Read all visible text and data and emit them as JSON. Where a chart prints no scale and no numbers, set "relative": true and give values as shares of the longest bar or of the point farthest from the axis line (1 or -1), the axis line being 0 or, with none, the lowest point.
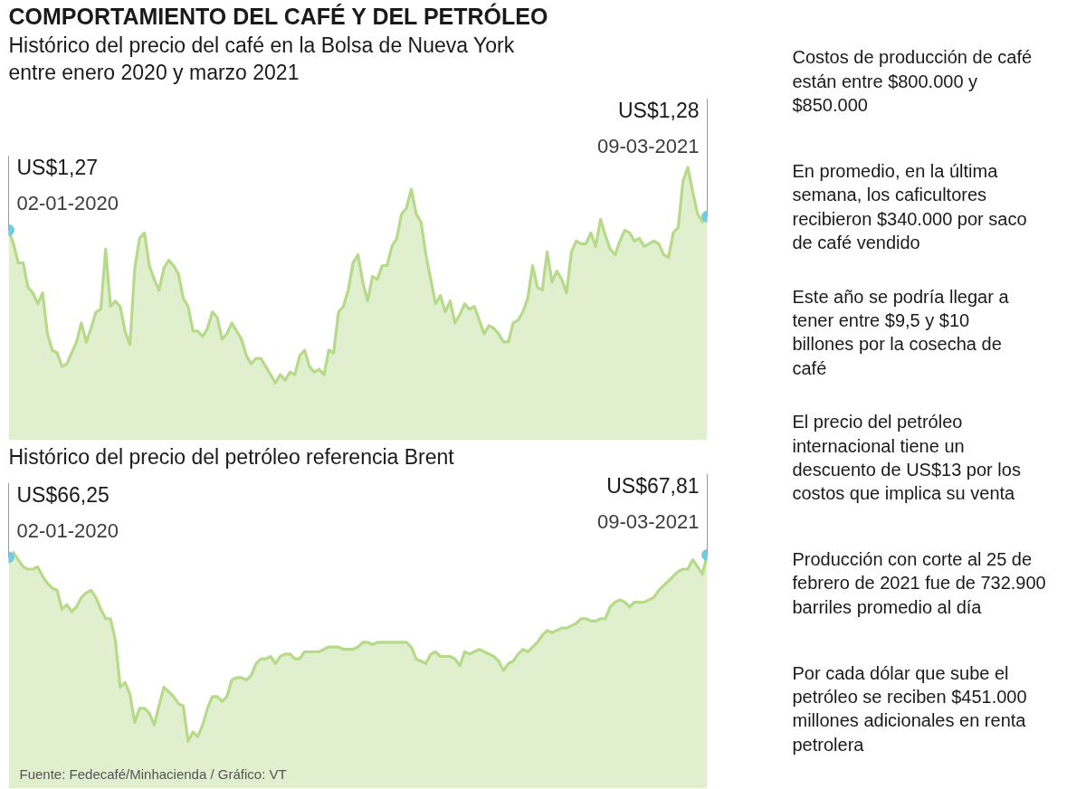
{
  "chart_data": [
    {
      "type": "area",
      "title": "COMPORTAMIENTO DEL CAFÉ Y DEL PETRÓLEO",
      "subtitle": "Histórico del precio del café en la Bolsa de Nueva York entre enero 2020 y marzo 2021",
      "relative": true,
      "tick_labels": false,
      "color": "#b6da8a",
      "categories": [
        null,
        null,
        null,
        null,
        null,
        null,
        null,
        null,
        null,
        null,
        null,
        null,
        null,
        null,
        null,
        null,
        null,
        null,
        null,
        null,
        null,
        null,
        null,
        null,
        null,
        null,
        null,
        null,
        null,
        null,
        null,
        null,
        null,
        null,
        null,
        null,
        null,
        null,
        null,
        null,
        null,
        null,
        null,
        null,
        null,
        null,
        null,
        null,
        null,
        null,
        null,
        null,
        null,
        null,
        null,
        null,
        null,
        null,
        null,
        null,
        null,
        null,
        null,
        null,
        null,
        null,
        null,
        null,
        null,
        null,
        null,
        null,
        null,
        null,
        null,
        null,
        null,
        null,
        null,
        null,
        null,
        null,
        null,
        null,
        null,
        null,
        null,
        null,
        null,
        null,
        null,
        null,
        null,
        null,
        null,
        null,
        null,
        null,
        null,
        null,
        null,
        null,
        null,
        null,
        null,
        null,
        null,
        null,
        null,
        null,
        null,
        null,
        null,
        null,
        null,
        null,
        null,
        null,
        null,
        null,
        null,
        null,
        null,
        null,
        null,
        null,
        null,
        null,
        null,
        null,
        null,
        null,
        null,
        null,
        null,
        null,
        null,
        null,
        null,
        null,
        null,
        null,
        null,
        null,
        null
      ],
      "values": [
        0.77,
        0.72,
        0.65,
        0.65,
        0.56,
        0.54,
        0.5,
        0.54,
        0.39,
        0.33,
        0.32,
        0.27,
        0.28,
        0.32,
        0.36,
        0.43,
        0.36,
        0.41,
        0.47,
        0.48,
        0.7,
        0.49,
        0.51,
        0.49,
        0.4,
        0.35,
        0.63,
        0.74,
        0.76,
        0.64,
        0.59,
        0.55,
        0.63,
        0.66,
        0.64,
        0.61,
        0.52,
        0.49,
        0.4,
        0.4,
        0.38,
        0.41,
        0.47,
        0.45,
        0.37,
        0.39,
        0.43,
        0.4,
        0.37,
        0.31,
        0.28,
        0.3,
        0.3,
        0.27,
        0.24,
        0.21,
        0.24,
        0.22,
        0.25,
        0.24,
        0.31,
        0.33,
        0.27,
        0.25,
        0.26,
        0.24,
        0.33,
        0.32,
        0.47,
        0.49,
        0.55,
        0.65,
        0.68,
        0.58,
        0.51,
        0.6,
        0.59,
        0.64,
        0.64,
        0.71,
        0.74,
        0.83,
        0.85,
        0.92,
        0.83,
        0.8,
        0.68,
        0.59,
        0.5,
        0.53,
        0.47,
        0.51,
        0.43,
        0.46,
        0.5,
        0.48,
        0.49,
        0.44,
        0.39,
        0.42,
        0.41,
        0.39,
        0.36,
        0.36,
        0.43,
        0.44,
        0.47,
        0.52,
        0.64,
        0.56,
        0.55,
        0.69,
        0.58,
        0.62,
        0.59,
        0.54,
        0.69,
        0.73,
        0.72,
        0.72,
        0.76,
        0.71,
        0.81,
        0.75,
        0.7,
        0.68,
        0.73,
        0.77,
        0.76,
        0.73,
        0.74,
        0.71,
        0.72,
        0.73,
        0.72,
        0.68,
        0.67,
        0.76,
        0.78,
        0.95,
        1.0,
        0.91,
        0.83,
        0.8,
        0.82
      ],
      "annotations": [
        "US$1,27",
        "02-01-2020",
        "US$1,28",
        "09-03-2021"
      ]
    },
    {
      "type": "area",
      "title": "Histórico del precio del petróleo referencia Brent",
      "relative": true,
      "tick_labels": false,
      "color": "#b6da8a",
      "categories": [
        null,
        null,
        null,
        null,
        null,
        null,
        null,
        null,
        null,
        null,
        null,
        null,
        null,
        null,
        null,
        null,
        null,
        null,
        null,
        null,
        null,
        null,
        null,
        null,
        null,
        null,
        null,
        null,
        null,
        null,
        null,
        null,
        null,
        null,
        null,
        null,
        null,
        null,
        null,
        null,
        null,
        null,
        null,
        null,
        null,
        null,
        null,
        null,
        null,
        null,
        null,
        null,
        null,
        null,
        null,
        null,
        null,
        null,
        null,
        null,
        null,
        null,
        null,
        null,
        null,
        null,
        null,
        null,
        null,
        null,
        null,
        null,
        null,
        null,
        null,
        null,
        null,
        null,
        null,
        null,
        null,
        null,
        null,
        null,
        null,
        null,
        null,
        null,
        null,
        null,
        null,
        null,
        null,
        null,
        null,
        null,
        null,
        null,
        null,
        null,
        null,
        null,
        null,
        null,
        null,
        null,
        null,
        null,
        null,
        null,
        null,
        null,
        null,
        null,
        null,
        null,
        null,
        null,
        null,
        null,
        null,
        null,
        null,
        null,
        null,
        null,
        null,
        null,
        null,
        null,
        null,
        null,
        null,
        null,
        null,
        null,
        null,
        null,
        null,
        null,
        null,
        null,
        null,
        null,
        null
      ],
      "values": [
        0.98,
        1.0,
        0.97,
        0.94,
        0.93,
        0.93,
        0.94,
        0.9,
        0.87,
        0.85,
        0.84,
        0.76,
        0.78,
        0.75,
        0.77,
        0.81,
        0.83,
        0.84,
        0.81,
        0.76,
        0.72,
        0.72,
        0.63,
        0.43,
        0.45,
        0.4,
        0.28,
        0.34,
        0.34,
        0.32,
        0.27,
        0.35,
        0.43,
        0.41,
        0.39,
        0.36,
        0.35,
        0.2,
        0.24,
        0.22,
        0.27,
        0.34,
        0.39,
        0.39,
        0.37,
        0.39,
        0.46,
        0.47,
        0.47,
        0.46,
        0.48,
        0.53,
        0.55,
        0.55,
        0.56,
        0.53,
        0.56,
        0.57,
        0.57,
        0.55,
        0.55,
        0.58,
        0.58,
        0.58,
        0.58,
        0.59,
        0.6,
        0.6,
        0.6,
        0.59,
        0.59,
        0.59,
        0.6,
        0.62,
        0.62,
        0.61,
        0.62,
        0.62,
        0.62,
        0.62,
        0.62,
        0.62,
        0.62,
        0.6,
        0.55,
        0.54,
        0.53,
        0.57,
        0.58,
        0.56,
        0.56,
        0.56,
        0.55,
        0.52,
        0.58,
        0.57,
        0.58,
        0.59,
        0.58,
        0.57,
        0.56,
        0.54,
        0.5,
        0.53,
        0.54,
        0.57,
        0.59,
        0.58,
        0.6,
        0.62,
        0.65,
        0.67,
        0.66,
        0.67,
        0.68,
        0.68,
        0.69,
        0.7,
        0.72,
        0.72,
        0.71,
        0.71,
        0.72,
        0.72,
        0.77,
        0.79,
        0.8,
        0.79,
        0.77,
        0.79,
        0.79,
        0.79,
        0.8,
        0.81,
        0.84,
        0.86,
        0.88,
        0.9,
        0.92,
        0.93,
        0.93,
        0.97,
        0.94,
        0.91,
        0.99
      ],
      "annotations": [
        "US$66,25",
        "02-01-2020",
        "US$67,81",
        "09-03-2021",
        "Fuente: Fedecafé/Minhacienda / Gráfico: VT"
      ]
    },
    {
      "type": "other",
      "annotations": [
        "Costos de producción de café están entre $800.000 y $850.000",
        "En promedio, en la última semana, los caficultores recibieron $340.000 por saco de café vendido",
        "Este año se podría llegar a tener entre $9,5 y $10 billones por la cosecha de café",
        "El precio del petróleo internacional tiene un descuento de US$13 por los costos que implica su venta",
        "Producción con corte al 25 de febrero de 2021 fue de 732.900 barriles promedio al día",
        "Por cada dólar que sube el petróleo se reciben $451.000 millones adicionales en renta petrolera"
      ]
    }
  ]
}
